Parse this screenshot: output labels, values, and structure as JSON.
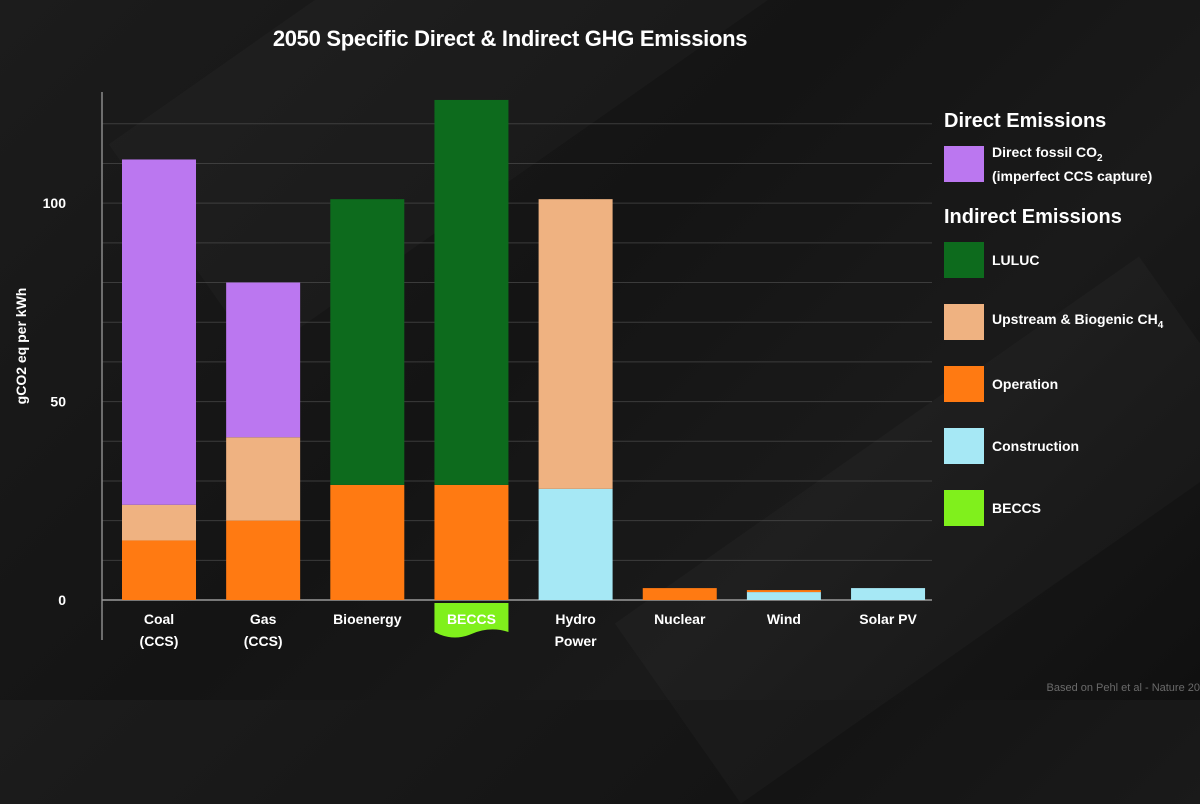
{
  "chart_data": {
    "type": "bar",
    "stacked": true,
    "title": "2050 Specific Direct & Indirect GHG Emissions",
    "ylabel": "gCO2 eq per kWh",
    "ylim": [
      0,
      128
    ],
    "yticks": [
      0,
      50,
      100
    ],
    "grid": true,
    "legend_position": "right",
    "categories": [
      {
        "line1": "Coal",
        "line2": "(CCS)"
      },
      {
        "line1": "Gas",
        "line2": "(CCS)"
      },
      {
        "line1": "Bioenergy",
        "line2": ""
      },
      {
        "line1": "BECCS",
        "line2": "",
        "highlight": true
      },
      {
        "line1": "Hydro",
        "line2": "Power"
      },
      {
        "line1": "Nuclear",
        "line2": ""
      },
      {
        "line1": "Wind",
        "line2": ""
      },
      {
        "line1": "Solar PV",
        "line2": ""
      }
    ],
    "series": [
      {
        "name": "Construction",
        "color": "#a6e8f5",
        "values": [
          0,
          0,
          0,
          0,
          28,
          0,
          2,
          3
        ]
      },
      {
        "name": "Operation",
        "color": "#ff7a12",
        "values": [
          15,
          20,
          29,
          29,
          0,
          3,
          0.5,
          0
        ]
      },
      {
        "name": "Upstream & Biogenic CH4",
        "color": "#efb281",
        "values": [
          9,
          21,
          0,
          0,
          73,
          0,
          0,
          0
        ]
      },
      {
        "name": "LULUC",
        "color": "#0d6b1d",
        "values": [
          0,
          0,
          72,
          97,
          0,
          0,
          0,
          0
        ]
      },
      {
        "name": "Direct fossil CO2",
        "color": "#bb77f0",
        "values": [
          87,
          39,
          0,
          0,
          0,
          0,
          0,
          0
        ]
      }
    ],
    "highlight_color": "#80f01c"
  },
  "legend": {
    "direct_heading": "Direct Emissions",
    "indirect_heading": "Indirect Emissions",
    "direct_items": [
      {
        "label_main": "Direct fossil CO",
        "label_sub": "2",
        "label_line2": "(imperfect CCS capture)",
        "color": "#bb77f0",
        "icon": "purple-swatch"
      }
    ],
    "indirect_items": [
      {
        "label_main": "LULUC",
        "label_sub": "",
        "label_line2": "",
        "color": "#0d6b1d",
        "icon": "dark-green-swatch"
      },
      {
        "label_main": "Upstream & Biogenic CH",
        "label_sub": "4",
        "label_line2": "",
        "color": "#efb281",
        "icon": "tan-swatch"
      },
      {
        "label_main": "Operation",
        "label_sub": "",
        "label_line2": "",
        "color": "#ff7a12",
        "icon": "orange-swatch"
      },
      {
        "label_main": "Construction",
        "label_sub": "",
        "label_line2": "",
        "color": "#a6e8f5",
        "icon": "light-blue-swatch"
      },
      {
        "label_main": "BECCS",
        "label_sub": "",
        "label_line2": "",
        "color": "#80f01c",
        "icon": "lime-swatch"
      }
    ]
  },
  "footer": {
    "source_text": "Based on Pehl et al - Nature 20"
  }
}
